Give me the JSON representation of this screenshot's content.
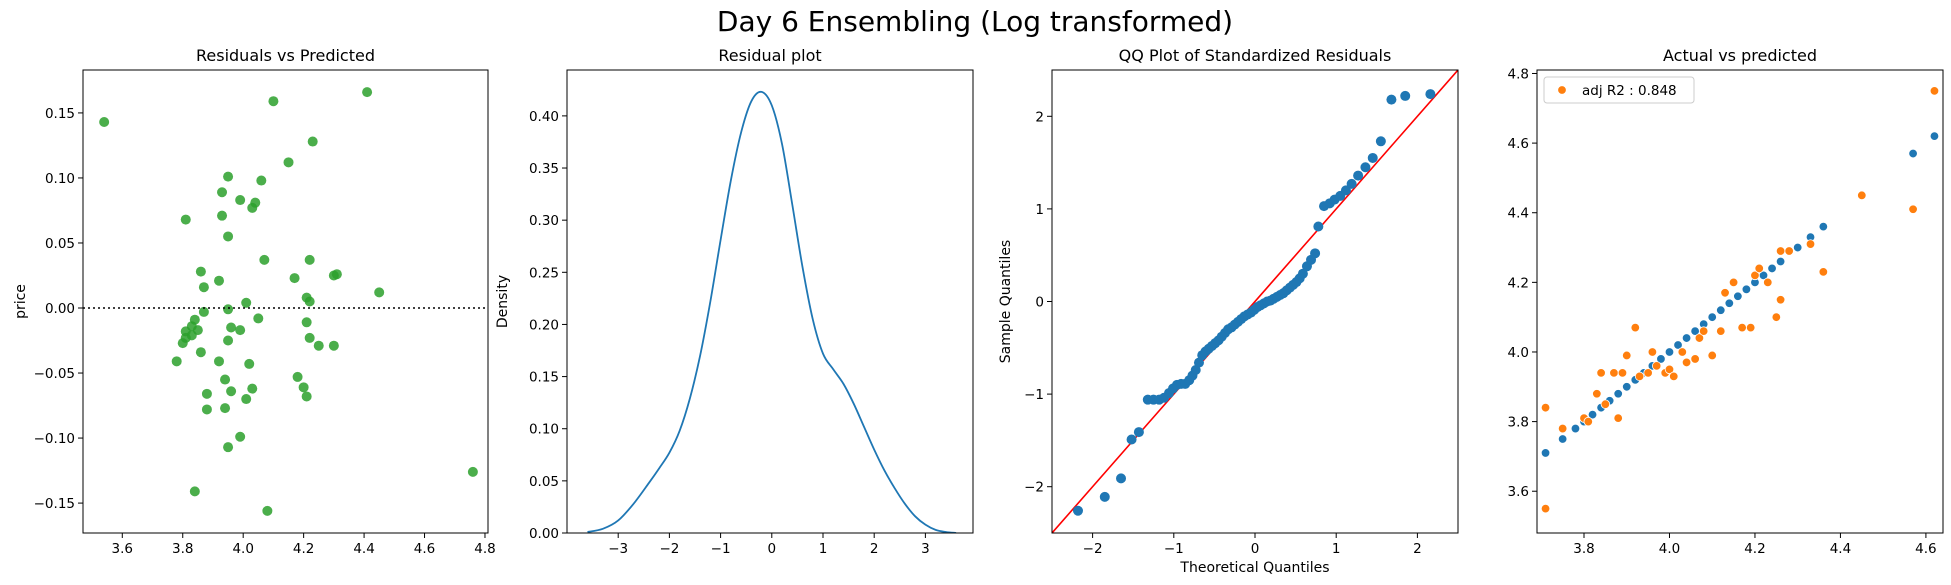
{
  "suptitle": "Day 6 Ensembling (Log transformed)",
  "colors": {
    "green": "#2ca02c",
    "blue": "#1f77b4",
    "orange": "#ff7f0e",
    "red": "#ff0000"
  },
  "chart_data": [
    {
      "type": "scatter",
      "title": "Residuals vs Predicted",
      "xlabel": "",
      "ylabel": "price",
      "xlim": [
        3.47,
        4.81
      ],
      "ylim": [
        -0.173,
        0.183
      ],
      "xticks": [
        3.6,
        3.8,
        4.0,
        4.2,
        4.4,
        4.6,
        4.8
      ],
      "xtick_labels": [
        "3.6",
        "3.8",
        "4.0",
        "4.2",
        "4.4",
        "4.6",
        "4.8"
      ],
      "yticks": [
        -0.15,
        -0.1,
        -0.05,
        0.0,
        0.05,
        0.1,
        0.15
      ],
      "ytick_labels": [
        "−0.15",
        "−0.10",
        "−0.05",
        "0.00",
        "0.05",
        "0.10",
        "0.15"
      ],
      "hline": 0,
      "points": [
        [
          3.54,
          0.143
        ],
        [
          4.1,
          0.159
        ],
        [
          4.41,
          0.166
        ],
        [
          4.23,
          0.128
        ],
        [
          4.15,
          0.112
        ],
        [
          3.95,
          0.101
        ],
        [
          4.06,
          0.098
        ],
        [
          3.93,
          0.089
        ],
        [
          3.99,
          0.083
        ],
        [
          4.04,
          0.081
        ],
        [
          4.03,
          0.077
        ],
        [
          3.93,
          0.071
        ],
        [
          3.81,
          0.068
        ],
        [
          3.95,
          0.055
        ],
        [
          4.07,
          0.037
        ],
        [
          4.22,
          0.037
        ],
        [
          3.86,
          0.028
        ],
        [
          4.3,
          0.025
        ],
        [
          4.31,
          0.026
        ],
        [
          3.92,
          0.021
        ],
        [
          4.17,
          0.023
        ],
        [
          3.87,
          0.016
        ],
        [
          4.21,
          0.008
        ],
        [
          4.22,
          0.005
        ],
        [
          4.45,
          0.012
        ],
        [
          4.01,
          0.004
        ],
        [
          3.95,
          -0.001
        ],
        [
          3.87,
          -0.003
        ],
        [
          3.84,
          -0.009
        ],
        [
          3.83,
          -0.014
        ],
        [
          4.05,
          -0.008
        ],
        [
          4.21,
          -0.011
        ],
        [
          3.96,
          -0.015
        ],
        [
          3.99,
          -0.017
        ],
        [
          3.81,
          -0.018
        ],
        [
          3.85,
          -0.017
        ],
        [
          3.83,
          -0.021
        ],
        [
          3.81,
          -0.023
        ],
        [
          3.95,
          -0.025
        ],
        [
          4.22,
          -0.023
        ],
        [
          4.25,
          -0.029
        ],
        [
          4.3,
          -0.029
        ],
        [
          3.8,
          -0.027
        ],
        [
          3.86,
          -0.034
        ],
        [
          3.78,
          -0.041
        ],
        [
          3.92,
          -0.041
        ],
        [
          4.02,
          -0.043
        ],
        [
          4.18,
          -0.053
        ],
        [
          3.94,
          -0.055
        ],
        [
          4.2,
          -0.061
        ],
        [
          4.03,
          -0.062
        ],
        [
          3.88,
          -0.066
        ],
        [
          3.96,
          -0.064
        ],
        [
          4.21,
          -0.068
        ],
        [
          4.01,
          -0.07
        ],
        [
          3.88,
          -0.078
        ],
        [
          3.94,
          -0.077
        ],
        [
          3.99,
          -0.099
        ],
        [
          3.95,
          -0.107
        ],
        [
          4.76,
          -0.126
        ],
        [
          3.84,
          -0.141
        ],
        [
          4.08,
          -0.156
        ]
      ]
    },
    {
      "type": "line",
      "title": "Residual plot",
      "xlabel": "",
      "ylabel": "Density",
      "xlim": [
        -4.0,
        3.93
      ],
      "ylim": [
        0,
        0.444
      ],
      "xticks": [
        -3,
        -2,
        -1,
        0,
        1,
        2,
        3
      ],
      "xtick_labels": [
        "−3",
        "−2",
        "−1",
        "0",
        "1",
        "2",
        "3"
      ],
      "yticks": [
        0.0,
        0.05,
        0.1,
        0.15,
        0.2,
        0.25,
        0.3,
        0.35,
        0.4
      ],
      "ytick_labels": [
        "0.00",
        "0.05",
        "0.10",
        "0.15",
        "0.20",
        "0.25",
        "0.30",
        "0.35",
        "0.40"
      ],
      "x": [
        -3.6,
        -3.3,
        -3.0,
        -2.7,
        -2.4,
        -2.2,
        -2.0,
        -1.8,
        -1.6,
        -1.4,
        -1.2,
        -1.0,
        -0.8,
        -0.6,
        -0.4,
        -0.2,
        0.0,
        0.2,
        0.4,
        0.6,
        0.8,
        1.0,
        1.2,
        1.4,
        1.6,
        1.8,
        2.0,
        2.2,
        2.4,
        2.6,
        2.8,
        3.0,
        3.2,
        3.4,
        3.6
      ],
      "y": [
        0.001,
        0.004,
        0.012,
        0.028,
        0.048,
        0.062,
        0.077,
        0.098,
        0.129,
        0.17,
        0.222,
        0.281,
        0.338,
        0.384,
        0.414,
        0.423,
        0.41,
        0.373,
        0.315,
        0.255,
        0.205,
        0.172,
        0.157,
        0.143,
        0.124,
        0.102,
        0.08,
        0.06,
        0.043,
        0.028,
        0.016,
        0.008,
        0.003,
        0.001,
        0.0
      ]
    },
    {
      "type": "scatter",
      "title": "QQ Plot of Standardized Residuals",
      "xlabel": "Theoretical Quantiles",
      "ylabel": "Sample Quantiles",
      "xlim": [
        -2.5,
        2.5
      ],
      "ylim": [
        -2.5,
        2.5
      ],
      "xticks": [
        -2,
        -1,
        0,
        1,
        2
      ],
      "xtick_labels": [
        "−2",
        "−1",
        "0",
        "1",
        "2"
      ],
      "yticks": [
        -2,
        -1,
        0,
        1,
        2
      ],
      "ytick_labels": [
        "−2",
        "−1",
        "0",
        "1",
        "2"
      ],
      "reference_line": [
        [
          -2.5,
          -2.5
        ],
        [
          2.5,
          2.5
        ]
      ],
      "points": [
        [
          -2.18,
          -2.26
        ],
        [
          -1.85,
          -2.11
        ],
        [
          -1.65,
          -1.91
        ],
        [
          -1.52,
          -1.49
        ],
        [
          -1.43,
          -1.41
        ],
        [
          -1.32,
          -1.06
        ],
        [
          -1.25,
          -1.06
        ],
        [
          -1.18,
          -1.06
        ],
        [
          -1.12,
          -1.04
        ],
        [
          -1.06,
          -0.99
        ],
        [
          -1.01,
          -0.94
        ],
        [
          -0.96,
          -0.9
        ],
        [
          -0.91,
          -0.89
        ],
        [
          -0.86,
          -0.89
        ],
        [
          -0.81,
          -0.85
        ],
        [
          -0.77,
          -0.8
        ],
        [
          -0.73,
          -0.74
        ],
        [
          -0.69,
          -0.66
        ],
        [
          -0.65,
          -0.58
        ],
        [
          -0.61,
          -0.54
        ],
        [
          -0.57,
          -0.51
        ],
        [
          -0.53,
          -0.48
        ],
        [
          -0.49,
          -0.45
        ],
        [
          -0.45,
          -0.42
        ],
        [
          -0.41,
          -0.38
        ],
        [
          -0.37,
          -0.34
        ],
        [
          -0.33,
          -0.3
        ],
        [
          -0.29,
          -0.28
        ],
        [
          -0.25,
          -0.25
        ],
        [
          -0.21,
          -0.22
        ],
        [
          -0.17,
          -0.19
        ],
        [
          -0.13,
          -0.16
        ],
        [
          -0.09,
          -0.14
        ],
        [
          -0.05,
          -0.12
        ],
        [
          -0.01,
          -0.09
        ],
        [
          0.03,
          -0.06
        ],
        [
          0.07,
          -0.04
        ],
        [
          0.11,
          -0.02
        ],
        [
          0.15,
          0.0
        ],
        [
          0.19,
          0.01
        ],
        [
          0.23,
          0.03
        ],
        [
          0.27,
          0.05
        ],
        [
          0.31,
          0.07
        ],
        [
          0.35,
          0.09
        ],
        [
          0.39,
          0.12
        ],
        [
          0.43,
          0.15
        ],
        [
          0.47,
          0.18
        ],
        [
          0.51,
          0.21
        ],
        [
          0.55,
          0.25
        ],
        [
          0.59,
          0.3
        ],
        [
          0.64,
          0.38
        ],
        [
          0.69,
          0.45
        ],
        [
          0.74,
          0.52
        ],
        [
          0.78,
          0.81
        ],
        [
          0.85,
          1.03
        ],
        [
          0.92,
          1.06
        ],
        [
          0.98,
          1.1
        ],
        [
          1.05,
          1.14
        ],
        [
          1.12,
          1.2
        ],
        [
          1.19,
          1.27
        ],
        [
          1.27,
          1.36
        ],
        [
          1.36,
          1.45
        ],
        [
          1.45,
          1.55
        ],
        [
          1.55,
          1.73
        ],
        [
          1.68,
          2.18
        ],
        [
          1.85,
          2.22
        ],
        [
          2.16,
          2.24
        ]
      ]
    },
    {
      "type": "scatter",
      "title": "Actual vs predicted",
      "xlabel": "",
      "ylabel": "",
      "xlim": [
        3.69,
        4.64
      ],
      "ylim": [
        3.48,
        4.81
      ],
      "xticks": [
        3.8,
        4.0,
        4.2,
        4.4,
        4.6
      ],
      "xtick_labels": [
        "3.8",
        "4.0",
        "4.2",
        "4.4",
        "4.6"
      ],
      "yticks": [
        3.6,
        3.8,
        4.0,
        4.2,
        4.4,
        4.6,
        4.8
      ],
      "ytick_labels": [
        "3.6",
        "3.8",
        "4.0",
        "4.2",
        "4.4",
        "4.6",
        "4.8"
      ],
      "legend": {
        "label": "adj R2 : 0.848",
        "placement": "top-left"
      },
      "series": [
        {
          "points": [
            [
              3.71,
              3.71
            ],
            [
              3.75,
              3.75
            ],
            [
              3.78,
              3.78
            ],
            [
              3.8,
              3.8
            ],
            [
              3.82,
              3.82
            ],
            [
              3.84,
              3.84
            ],
            [
              3.86,
              3.86
            ],
            [
              3.88,
              3.88
            ],
            [
              3.9,
              3.9
            ],
            [
              3.92,
              3.92
            ],
            [
              3.94,
              3.94
            ],
            [
              3.96,
              3.96
            ],
            [
              3.98,
              3.98
            ],
            [
              4.0,
              4.0
            ],
            [
              4.02,
              4.02
            ],
            [
              4.04,
              4.04
            ],
            [
              4.06,
              4.06
            ],
            [
              4.08,
              4.08
            ],
            [
              4.1,
              4.1
            ],
            [
              4.12,
              4.12
            ],
            [
              4.14,
              4.14
            ],
            [
              4.16,
              4.16
            ],
            [
              4.18,
              4.18
            ],
            [
              4.2,
              4.2
            ],
            [
              4.22,
              4.22
            ],
            [
              4.24,
              4.24
            ],
            [
              4.26,
              4.26
            ],
            [
              4.3,
              4.3
            ],
            [
              4.33,
              4.33
            ],
            [
              4.36,
              4.36
            ],
            [
              4.57,
              4.57
            ],
            [
              4.62,
              4.62
            ]
          ]
        },
        {
          "points": [
            [
              3.71,
              3.84
            ],
            [
              3.71,
              3.55
            ],
            [
              3.75,
              3.78
            ],
            [
              3.8,
              3.81
            ],
            [
              3.81,
              3.8
            ],
            [
              3.83,
              3.88
            ],
            [
              3.84,
              3.94
            ],
            [
              3.85,
              3.85
            ],
            [
              3.87,
              3.94
            ],
            [
              3.88,
              3.81
            ],
            [
              3.89,
              3.94
            ],
            [
              3.9,
              3.99
            ],
            [
              3.92,
              4.07
            ],
            [
              3.93,
              3.93
            ],
            [
              3.95,
              3.94
            ],
            [
              3.96,
              4.0
            ],
            [
              3.97,
              3.96
            ],
            [
              3.99,
              3.94
            ],
            [
              4.0,
              3.95
            ],
            [
              4.01,
              3.93
            ],
            [
              4.03,
              4.0
            ],
            [
              4.04,
              3.97
            ],
            [
              4.06,
              3.98
            ],
            [
              4.07,
              4.04
            ],
            [
              4.08,
              4.06
            ],
            [
              4.1,
              3.99
            ],
            [
              4.12,
              4.06
            ],
            [
              4.13,
              4.17
            ],
            [
              4.15,
              4.2
            ],
            [
              4.17,
              4.07
            ],
            [
              4.19,
              4.07
            ],
            [
              4.2,
              4.22
            ],
            [
              4.21,
              4.24
            ],
            [
              4.23,
              4.2
            ],
            [
              4.25,
              4.1
            ],
            [
              4.26,
              4.15
            ],
            [
              4.26,
              4.29
            ],
            [
              4.28,
              4.29
            ],
            [
              4.33,
              4.31
            ],
            [
              4.36,
              4.23
            ],
            [
              4.45,
              4.45
            ],
            [
              4.57,
              4.41
            ],
            [
              4.62,
              4.75
            ]
          ]
        }
      ]
    }
  ]
}
